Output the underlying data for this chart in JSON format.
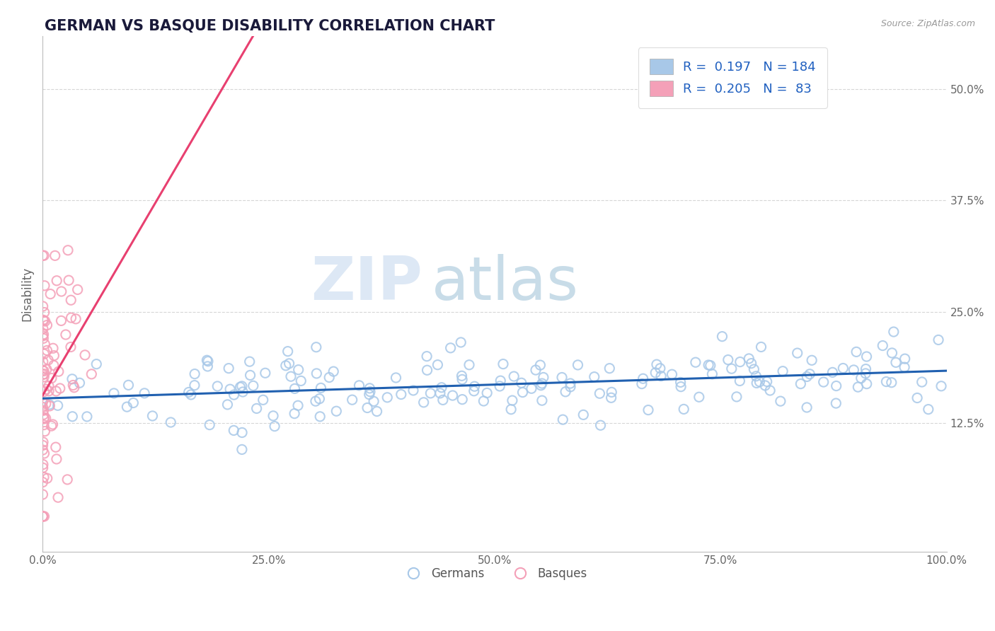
{
  "title": "GERMAN VS BASQUE DISABILITY CORRELATION CHART",
  "source": "Source: ZipAtlas.com",
  "ylabel": "Disability",
  "xlim": [
    0,
    1.0
  ],
  "ylim": [
    -0.02,
    0.56
  ],
  "german_R": 0.197,
  "german_N": 184,
  "basque_R": 0.205,
  "basque_N": 83,
  "german_color": "#a8c8e8",
  "basque_color": "#f4a0b8",
  "german_line_color": "#2060b0",
  "basque_line_color": "#e84070",
  "basque_line_dashed_color": "#e8a0b8",
  "legend_text_color": "#2060c0",
  "background_color": "#ffffff",
  "watermark_zip": "ZIP",
  "watermark_atlas": "atlas",
  "watermark_color": "#dde8f5",
  "watermark_color2": "#c8dce8"
}
